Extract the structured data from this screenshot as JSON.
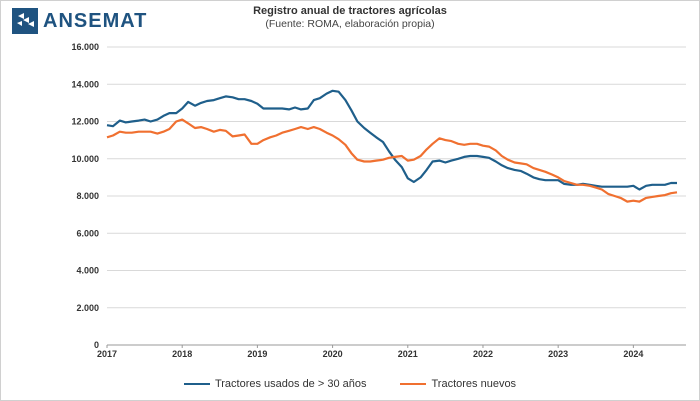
{
  "brand": {
    "name": "ANSEMAT",
    "color": "#1f5380"
  },
  "chart_data": {
    "type": "line",
    "title": "Registro anual de tractores agrícolas",
    "subtitle": "(Fuente: ROMA, elaboración propia)",
    "xlabel": "",
    "ylabel": "",
    "xlim": [
      2017,
      2024.7
    ],
    "ylim": [
      0,
      16000
    ],
    "x_ticks": [
      2017,
      2018,
      2019,
      2020,
      2021,
      2022,
      2023,
      2024
    ],
    "x_tick_labels": [
      "2017",
      "2018",
      "2019",
      "2020",
      "2021",
      "2022",
      "2023",
      "2024"
    ],
    "y_ticks": [
      0,
      2000,
      4000,
      6000,
      8000,
      10000,
      12000,
      14000,
      16000
    ],
    "y_tick_labels": [
      "0",
      "2.000",
      "4.000",
      "6.000",
      "8.000",
      "10.000",
      "12.000",
      "14.000",
      "16.000"
    ],
    "grid": "horizontal",
    "legend": "bottom",
    "series": [
      {
        "name": "Tractores usados de > 30 años",
        "color": "#1f5f8b",
        "points": [
          [
            2017.0,
            11800
          ],
          [
            2017.08,
            11750
          ],
          [
            2017.17,
            12050
          ],
          [
            2017.25,
            11950
          ],
          [
            2017.33,
            12000
          ],
          [
            2017.42,
            12050
          ],
          [
            2017.5,
            12100
          ],
          [
            2017.58,
            12000
          ],
          [
            2017.67,
            12100
          ],
          [
            2017.75,
            12300
          ],
          [
            2017.83,
            12450
          ],
          [
            2017.92,
            12450
          ],
          [
            2018.0,
            12700
          ],
          [
            2018.08,
            13050
          ],
          [
            2018.17,
            12850
          ],
          [
            2018.25,
            13000
          ],
          [
            2018.33,
            13100
          ],
          [
            2018.42,
            13150
          ],
          [
            2018.5,
            13250
          ],
          [
            2018.58,
            13350
          ],
          [
            2018.67,
            13300
          ],
          [
            2018.75,
            13200
          ],
          [
            2018.83,
            13200
          ],
          [
            2018.92,
            13100
          ],
          [
            2019.0,
            12950
          ],
          [
            2019.08,
            12700
          ],
          [
            2019.17,
            12700
          ],
          [
            2019.25,
            12700
          ],
          [
            2019.33,
            12700
          ],
          [
            2019.42,
            12650
          ],
          [
            2019.5,
            12750
          ],
          [
            2019.58,
            12650
          ],
          [
            2019.67,
            12700
          ],
          [
            2019.75,
            13150
          ],
          [
            2019.83,
            13250
          ],
          [
            2019.92,
            13500
          ],
          [
            2020.0,
            13650
          ],
          [
            2020.08,
            13600
          ],
          [
            2020.17,
            13150
          ],
          [
            2020.25,
            12600
          ],
          [
            2020.33,
            12000
          ],
          [
            2020.42,
            11650
          ],
          [
            2020.5,
            11400
          ],
          [
            2020.58,
            11150
          ],
          [
            2020.67,
            10900
          ],
          [
            2020.75,
            10400
          ],
          [
            2020.83,
            9950
          ],
          [
            2020.92,
            9550
          ],
          [
            2021.0,
            8950
          ],
          [
            2021.08,
            8750
          ],
          [
            2021.17,
            9000
          ],
          [
            2021.25,
            9400
          ],
          [
            2021.33,
            9850
          ],
          [
            2021.42,
            9900
          ],
          [
            2021.5,
            9800
          ],
          [
            2021.58,
            9900
          ],
          [
            2021.67,
            10000
          ],
          [
            2021.75,
            10100
          ],
          [
            2021.83,
            10150
          ],
          [
            2021.92,
            10150
          ],
          [
            2022.0,
            10100
          ],
          [
            2022.08,
            10050
          ],
          [
            2022.17,
            9850
          ],
          [
            2022.25,
            9650
          ],
          [
            2022.33,
            9500
          ],
          [
            2022.42,
            9400
          ],
          [
            2022.5,
            9350
          ],
          [
            2022.58,
            9200
          ],
          [
            2022.67,
            9000
          ],
          [
            2022.75,
            8900
          ],
          [
            2022.83,
            8850
          ],
          [
            2022.92,
            8850
          ],
          [
            2023.0,
            8850
          ],
          [
            2023.08,
            8650
          ],
          [
            2023.17,
            8600
          ],
          [
            2023.25,
            8600
          ],
          [
            2023.33,
            8650
          ],
          [
            2023.42,
            8600
          ],
          [
            2023.5,
            8550
          ],
          [
            2023.58,
            8500
          ],
          [
            2023.67,
            8500
          ],
          [
            2023.75,
            8500
          ],
          [
            2023.83,
            8500
          ],
          [
            2023.92,
            8500
          ],
          [
            2024.0,
            8550
          ],
          [
            2024.08,
            8350
          ],
          [
            2024.17,
            8550
          ],
          [
            2024.25,
            8600
          ],
          [
            2024.33,
            8600
          ],
          [
            2024.42,
            8600
          ],
          [
            2024.5,
            8700
          ],
          [
            2024.58,
            8700
          ]
        ]
      },
      {
        "name": "Tractores nuevos",
        "color": "#f07030",
        "points": [
          [
            2017.0,
            11150
          ],
          [
            2017.08,
            11250
          ],
          [
            2017.17,
            11450
          ],
          [
            2017.25,
            11400
          ],
          [
            2017.33,
            11400
          ],
          [
            2017.42,
            11450
          ],
          [
            2017.5,
            11450
          ],
          [
            2017.58,
            11450
          ],
          [
            2017.67,
            11350
          ],
          [
            2017.75,
            11450
          ],
          [
            2017.83,
            11600
          ],
          [
            2017.92,
            12000
          ],
          [
            2018.0,
            12100
          ],
          [
            2018.08,
            11900
          ],
          [
            2018.17,
            11650
          ],
          [
            2018.25,
            11700
          ],
          [
            2018.33,
            11600
          ],
          [
            2018.42,
            11450
          ],
          [
            2018.5,
            11550
          ],
          [
            2018.58,
            11500
          ],
          [
            2018.67,
            11200
          ],
          [
            2018.75,
            11250
          ],
          [
            2018.83,
            11300
          ],
          [
            2018.92,
            10800
          ],
          [
            2019.0,
            10800
          ],
          [
            2019.08,
            11000
          ],
          [
            2019.17,
            11150
          ],
          [
            2019.25,
            11250
          ],
          [
            2019.33,
            11400
          ],
          [
            2019.42,
            11500
          ],
          [
            2019.5,
            11600
          ],
          [
            2019.58,
            11700
          ],
          [
            2019.67,
            11600
          ],
          [
            2019.75,
            11700
          ],
          [
            2019.83,
            11600
          ],
          [
            2019.92,
            11400
          ],
          [
            2020.0,
            11250
          ],
          [
            2020.08,
            11050
          ],
          [
            2020.17,
            10750
          ],
          [
            2020.25,
            10300
          ],
          [
            2020.33,
            9950
          ],
          [
            2020.42,
            9850
          ],
          [
            2020.5,
            9850
          ],
          [
            2020.58,
            9900
          ],
          [
            2020.67,
            9950
          ],
          [
            2020.75,
            10050
          ],
          [
            2020.83,
            10100
          ],
          [
            2020.92,
            10150
          ],
          [
            2021.0,
            9900
          ],
          [
            2021.08,
            9950
          ],
          [
            2021.17,
            10150
          ],
          [
            2021.25,
            10500
          ],
          [
            2021.33,
            10800
          ],
          [
            2021.42,
            11100
          ],
          [
            2021.5,
            11000
          ],
          [
            2021.58,
            10950
          ],
          [
            2021.67,
            10800
          ],
          [
            2021.75,
            10750
          ],
          [
            2021.83,
            10800
          ],
          [
            2021.92,
            10800
          ],
          [
            2022.0,
            10700
          ],
          [
            2022.08,
            10650
          ],
          [
            2022.17,
            10450
          ],
          [
            2022.25,
            10150
          ],
          [
            2022.33,
            9950
          ],
          [
            2022.42,
            9800
          ],
          [
            2022.5,
            9750
          ],
          [
            2022.58,
            9700
          ],
          [
            2022.67,
            9500
          ],
          [
            2022.75,
            9400
          ],
          [
            2022.83,
            9300
          ],
          [
            2022.92,
            9150
          ],
          [
            2023.0,
            9000
          ],
          [
            2023.08,
            8800
          ],
          [
            2023.17,
            8700
          ],
          [
            2023.25,
            8600
          ],
          [
            2023.33,
            8600
          ],
          [
            2023.42,
            8550
          ],
          [
            2023.5,
            8450
          ],
          [
            2023.58,
            8350
          ],
          [
            2023.67,
            8100
          ],
          [
            2023.75,
            8000
          ],
          [
            2023.83,
            7900
          ],
          [
            2023.92,
            7700
          ],
          [
            2024.0,
            7750
          ],
          [
            2024.08,
            7700
          ],
          [
            2024.17,
            7900
          ],
          [
            2024.25,
            7950
          ],
          [
            2024.33,
            8000
          ],
          [
            2024.42,
            8050
          ],
          [
            2024.5,
            8150
          ],
          [
            2024.58,
            8200
          ]
        ]
      }
    ]
  }
}
